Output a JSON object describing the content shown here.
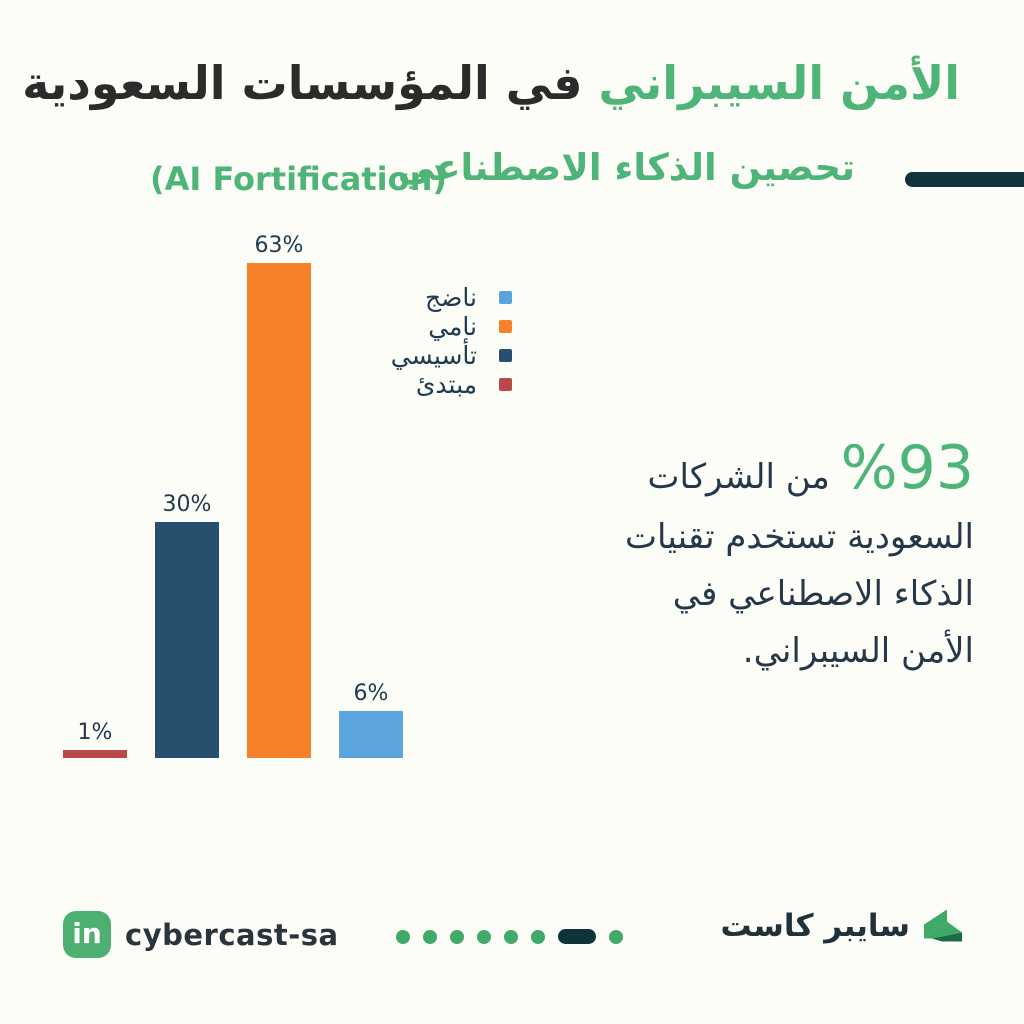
{
  "page": {
    "background": "#FBFDF6",
    "accent_green": "#4FB478",
    "dark_teal": "#11333B",
    "text_dark": "#2B2B2B",
    "text_navy": "#203A50"
  },
  "header": {
    "title_highlight": "الأمن السيبراني",
    "title_rest": "في المؤسسات السعودية",
    "subtitle_ar": "تحصين الذكاء الاصطناعي",
    "subtitle_en": "(AI Fortification)"
  },
  "chart_data": {
    "type": "bar",
    "direction": "rtl",
    "title": "تحصين الذكاء الاصطناعي (AI Fortification)",
    "categories": [
      "ناضج",
      "نامي",
      "تأسيسي",
      "مبتدئ"
    ],
    "values": [
      6,
      63,
      30,
      1
    ],
    "bar_labels": [
      "6%",
      "63%",
      "30%",
      "1%"
    ],
    "colors": [
      "#5BA4DE",
      "#F5812B",
      "#27506F",
      "#B9484B"
    ],
    "xlabel": "",
    "ylabel": "",
    "ylim": [
      0,
      63
    ],
    "grid": false,
    "axes_shown": false,
    "legend_position": "upper-right",
    "legend": [
      {
        "label": "ناضج",
        "color": "#5BA4DE"
      },
      {
        "label": "نامي",
        "color": "#F5812B"
      },
      {
        "label": "تأسيسي",
        "color": "#27506F"
      },
      {
        "label": "مبتدئ",
        "color": "#B9484B"
      }
    ]
  },
  "stat": {
    "number": "%93",
    "line1_rest": "من الشركات",
    "lines": [
      "السعودية تستخدم تقنيات",
      "الذكاء الاصطناعي في",
      "الأمن السيبراني."
    ]
  },
  "footer": {
    "linkedin_icon_text": "in",
    "linkedin_handle": "cybercast-sa",
    "brand_name": "سايبر كاست",
    "pagination": {
      "dots_total": 8,
      "active_position_from_left": 7,
      "dot_color": "#41AA6A",
      "active_color": "#0F3338"
    }
  }
}
